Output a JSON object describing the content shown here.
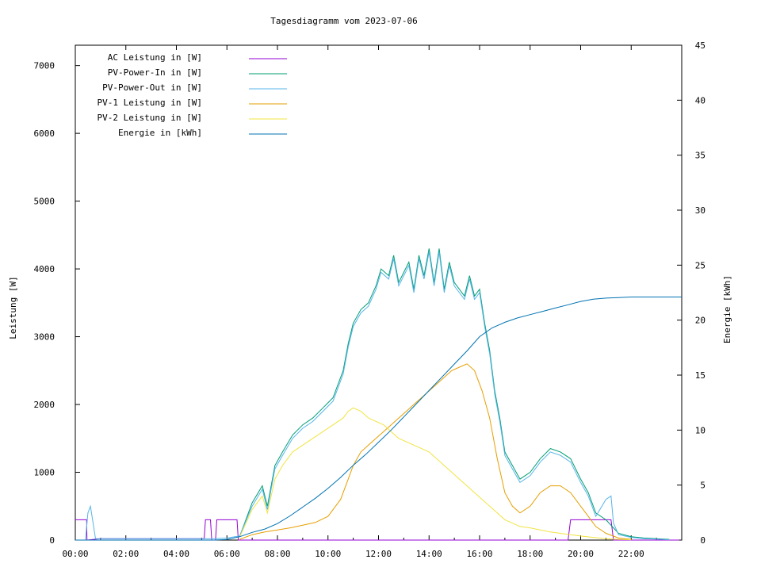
{
  "chart_data": {
    "type": "line",
    "title": "Tagesdiagramm vom 2023-07-06",
    "xlabel": "",
    "ylabel": "Leistung [W]",
    "y2label": "Energie [kWh]",
    "xlim": [
      0,
      24
    ],
    "ylim": [
      0,
      7300
    ],
    "y2lim": [
      0,
      45
    ],
    "x_ticks": [
      "00:00",
      "02:00",
      "04:00",
      "06:00",
      "08:00",
      "10:00",
      "12:00",
      "14:00",
      "16:00",
      "18:00",
      "20:00",
      "22:00"
    ],
    "y_ticks": [
      0,
      1000,
      2000,
      3000,
      4000,
      5000,
      6000,
      7000
    ],
    "y2_ticks": [
      0,
      5,
      10,
      15,
      20,
      25,
      30,
      35,
      40,
      45
    ],
    "grid": false,
    "legend_position": "top-left",
    "series": [
      {
        "name": "AC Leistung in [W]",
        "color": "#9400d3",
        "axis": "left",
        "x": [
          0.0,
          0.45,
          0.46,
          1.0,
          1.2,
          5.1,
          5.15,
          5.35,
          5.4,
          5.55,
          5.6,
          6.4,
          6.45,
          19.5,
          19.6,
          20.2,
          20.3,
          21.2,
          21.3,
          22.0,
          23.9
        ],
        "y": [
          300,
          300,
          0,
          20,
          20,
          20,
          300,
          300,
          0,
          0,
          300,
          300,
          0,
          0,
          300,
          300,
          300,
          300,
          0,
          0,
          0
        ]
      },
      {
        "name": "PV-Power-In in [W]",
        "color": "#009e73",
        "axis": "left",
        "x": [
          6.5,
          7.0,
          7.4,
          7.6,
          7.9,
          8.2,
          8.6,
          9.0,
          9.4,
          9.8,
          10.2,
          10.6,
          10.8,
          11.0,
          11.3,
          11.6,
          11.9,
          12.1,
          12.4,
          12.6,
          12.8,
          13.0,
          13.2,
          13.4,
          13.6,
          13.8,
          14.0,
          14.2,
          14.4,
          14.6,
          14.8,
          15.0,
          15.2,
          15.4,
          15.6,
          15.8,
          16.0,
          16.2,
          16.4,
          16.6,
          16.8,
          17.0,
          17.3,
          17.6,
          18.0,
          18.4,
          18.8,
          19.2,
          19.6,
          20.0,
          20.3,
          20.6,
          21.0,
          21.5,
          22.0,
          22.5,
          23.0,
          23.5
        ],
        "y": [
          50,
          550,
          800,
          500,
          1100,
          1300,
          1550,
          1700,
          1800,
          1950,
          2100,
          2500,
          2900,
          3200,
          3400,
          3500,
          3750,
          4000,
          3900,
          4200,
          3800,
          3950,
          4100,
          3700,
          4200,
          3900,
          4300,
          3800,
          4300,
          3700,
          4100,
          3800,
          3700,
          3600,
          3900,
          3600,
          3700,
          3200,
          2800,
          2200,
          1800,
          1300,
          1100,
          900,
          1000,
          1200,
          1350,
          1300,
          1200,
          900,
          700,
          400,
          300,
          100,
          50,
          30,
          20,
          10
        ]
      },
      {
        "name": "PV-Power-Out in [W]",
        "color": "#56b4e9",
        "axis": "left",
        "x": [
          0.0,
          0.4,
          0.5,
          0.6,
          0.8,
          1.0,
          1.5,
          2.0,
          3.0,
          4.0,
          5.0,
          5.5,
          6.0,
          6.5,
          7.0,
          7.4,
          7.6,
          7.9,
          8.2,
          8.6,
          9.0,
          9.4,
          9.8,
          10.2,
          10.6,
          10.8,
          11.0,
          11.3,
          11.6,
          11.9,
          12.1,
          12.4,
          12.6,
          12.8,
          13.0,
          13.2,
          13.4,
          13.6,
          13.8,
          14.0,
          14.2,
          14.4,
          14.6,
          14.8,
          15.0,
          15.2,
          15.4,
          15.6,
          15.8,
          16.0,
          16.2,
          16.4,
          16.6,
          16.8,
          17.0,
          17.3,
          17.6,
          18.0,
          18.4,
          18.8,
          19.2,
          19.6,
          20.0,
          20.3,
          20.6,
          21.0,
          21.2,
          21.3,
          21.5,
          22.0,
          22.5,
          23.0,
          23.5
        ],
        "y": [
          0,
          0,
          400,
          500,
          20,
          20,
          20,
          20,
          20,
          20,
          20,
          20,
          30,
          60,
          500,
          750,
          450,
          1050,
          1250,
          1500,
          1650,
          1750,
          1900,
          2050,
          2450,
          2850,
          3150,
          3350,
          3450,
          3700,
          3950,
          3850,
          4150,
          3750,
          3900,
          4050,
          3650,
          4150,
          3850,
          4250,
          3750,
          4250,
          3650,
          4050,
          3750,
          3650,
          3550,
          3850,
          3550,
          3650,
          3150,
          2750,
          2150,
          1750,
          1250,
          1050,
          850,
          950,
          1150,
          1300,
          1250,
          1150,
          850,
          650,
          350,
          600,
          650,
          250,
          80,
          40,
          20,
          15,
          5
        ]
      },
      {
        "name": "PV-1 Leistung in [W]",
        "color": "#e69f00",
        "axis": "left",
        "x": [
          6.5,
          7.0,
          7.5,
          8.0,
          8.5,
          9.0,
          9.5,
          10.0,
          10.5,
          10.8,
          11.0,
          11.3,
          11.6,
          11.9,
          12.2,
          12.5,
          12.8,
          13.1,
          13.4,
          13.7,
          14.0,
          14.3,
          14.6,
          14.9,
          15.2,
          15.5,
          15.8,
          16.1,
          16.4,
          16.7,
          17.0,
          17.3,
          17.6,
          18.0,
          18.4,
          18.8,
          19.2,
          19.6,
          20.0,
          20.3,
          20.6,
          21.0,
          21.5,
          22.0
        ],
        "y": [
          10,
          80,
          120,
          150,
          180,
          220,
          260,
          350,
          600,
          900,
          1100,
          1300,
          1400,
          1500,
          1600,
          1700,
          1800,
          1900,
          2000,
          2100,
          2200,
          2300,
          2400,
          2500,
          2550,
          2600,
          2500,
          2200,
          1800,
          1200,
          700,
          500,
          400,
          500,
          700,
          800,
          800,
          700,
          500,
          350,
          200,
          100,
          30,
          10
        ]
      },
      {
        "name": "PV-2 Leistung in [W]",
        "color": "#f0e442",
        "axis": "left",
        "x": [
          6.5,
          7.0,
          7.4,
          7.6,
          7.9,
          8.2,
          8.6,
          9.0,
          9.4,
          9.8,
          10.2,
          10.6,
          10.8,
          11.0,
          11.3,
          11.6,
          11.9,
          12.2,
          12.5,
          12.8,
          13.1,
          13.4,
          13.7,
          14.0,
          14.3,
          14.6,
          14.9,
          15.2,
          15.5,
          15.8,
          16.1,
          16.4,
          16.7,
          17.0,
          17.3,
          17.6,
          18.0,
          18.4,
          18.8,
          19.2,
          19.6,
          20.0,
          20.5,
          21.0,
          21.5,
          22.0
        ],
        "y": [
          40,
          450,
          650,
          400,
          900,
          1100,
          1300,
          1400,
          1500,
          1600,
          1700,
          1800,
          1900,
          1950,
          1900,
          1800,
          1750,
          1700,
          1600,
          1500,
          1450,
          1400,
          1350,
          1300,
          1200,
          1100,
          1000,
          900,
          800,
          700,
          600,
          500,
          400,
          300,
          250,
          200,
          180,
          150,
          120,
          100,
          80,
          60,
          40,
          20,
          10,
          5
        ]
      },
      {
        "name": "Energie in [kWh]",
        "color": "#0072b2",
        "axis": "right",
        "x": [
          0.0,
          5.5,
          6.0,
          6.5,
          7.0,
          7.5,
          8.0,
          8.5,
          9.0,
          9.5,
          10.0,
          10.5,
          11.0,
          11.5,
          12.0,
          12.5,
          13.0,
          13.5,
          14.0,
          14.5,
          15.0,
          15.5,
          16.0,
          16.5,
          17.0,
          17.5,
          18.0,
          18.5,
          19.0,
          19.5,
          20.0,
          20.5,
          21.0,
          21.5,
          22.0,
          23.0,
          24.0
        ],
        "y": [
          0,
          0,
          0.05,
          0.3,
          0.7,
          1.0,
          1.5,
          2.2,
          3.0,
          3.8,
          4.7,
          5.7,
          6.8,
          7.8,
          8.9,
          10.0,
          11.2,
          12.4,
          13.6,
          14.8,
          16.0,
          17.2,
          18.5,
          19.3,
          19.8,
          20.2,
          20.5,
          20.8,
          21.1,
          21.4,
          21.7,
          21.9,
          22.0,
          22.05,
          22.1,
          22.1,
          22.1
        ]
      }
    ]
  }
}
